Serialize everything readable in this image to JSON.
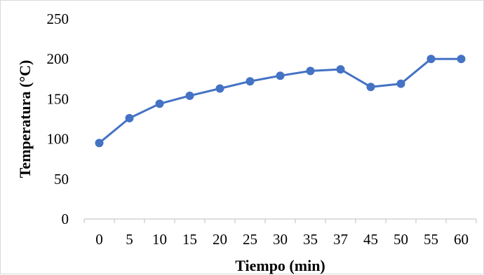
{
  "chart_data": {
    "type": "line",
    "title": "",
    "xlabel": "Tiempo (min)",
    "ylabel": "Temperatura  (°C)",
    "categories": [
      "0",
      "5",
      "10",
      "15",
      "20",
      "25",
      "30",
      "35",
      "37",
      "45",
      "50",
      "55",
      "60"
    ],
    "series": [
      {
        "values": [
          95,
          126,
          144,
          154,
          163,
          172,
          179,
          185,
          187,
          165,
          169,
          200,
          200
        ]
      }
    ],
    "ylim": [
      0,
      250
    ],
    "yticks": [
      "0",
      "50",
      "100",
      "150",
      "200",
      "250"
    ],
    "grid": false,
    "legend": "none",
    "colors": {
      "series": "#4472c4",
      "axis": "#bfbfbf"
    }
  }
}
